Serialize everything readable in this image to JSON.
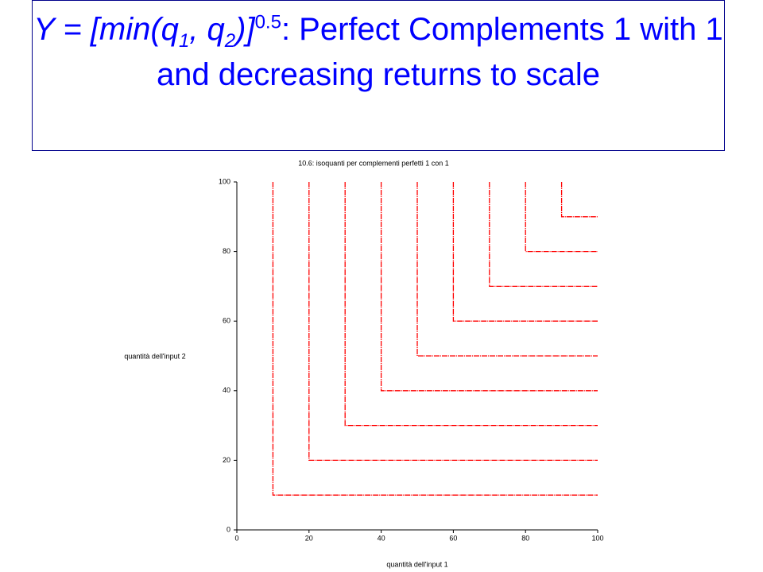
{
  "slide_title": [
    "Y = [min(q",
    "1",
    ", q",
    "2",
    ")]",
    "0.5",
    ": Perfect Complements 1 with 1 and decreasing returns to scale"
  ],
  "chart_data": {
    "type": "line",
    "title": "10.6: isoquanti per complementi perfetti 1 con 1",
    "x_label": "quantità dell'input 1",
    "y_label": "quantità dell'input 2",
    "xlim": [
      0,
      100
    ],
    "ylim": [
      0,
      100
    ],
    "xticks": [
      0,
      20,
      40,
      60,
      80,
      100
    ],
    "yticks": [
      0,
      20,
      40,
      60,
      80,
      100
    ],
    "series": [
      {
        "color": "#ff0000",
        "x": [
          10,
          10,
          100
        ],
        "values": [
          100,
          10,
          10
        ]
      },
      {
        "color": "#ff0000",
        "x": [
          20,
          20,
          100
        ],
        "values": [
          100,
          20,
          20
        ]
      },
      {
        "color": "#ff0000",
        "x": [
          30,
          30,
          100
        ],
        "values": [
          100,
          30,
          30
        ]
      },
      {
        "color": "#ff0000",
        "x": [
          40,
          40,
          100
        ],
        "values": [
          100,
          40,
          40
        ]
      },
      {
        "color": "#ff0000",
        "x": [
          50,
          50,
          100
        ],
        "values": [
          100,
          50,
          50
        ]
      },
      {
        "color": "#ff0000",
        "x": [
          60,
          60,
          100
        ],
        "values": [
          100,
          60,
          60
        ]
      },
      {
        "color": "#ff0000",
        "x": [
          70,
          70,
          100
        ],
        "values": [
          100,
          70,
          70
        ]
      },
      {
        "color": "#ff0000",
        "x": [
          80,
          80,
          100
        ],
        "values": [
          100,
          80,
          80
        ]
      },
      {
        "color": "#ff0000",
        "x": [
          90,
          90,
          100
        ],
        "values": [
          100,
          90,
          90
        ]
      }
    ]
  }
}
